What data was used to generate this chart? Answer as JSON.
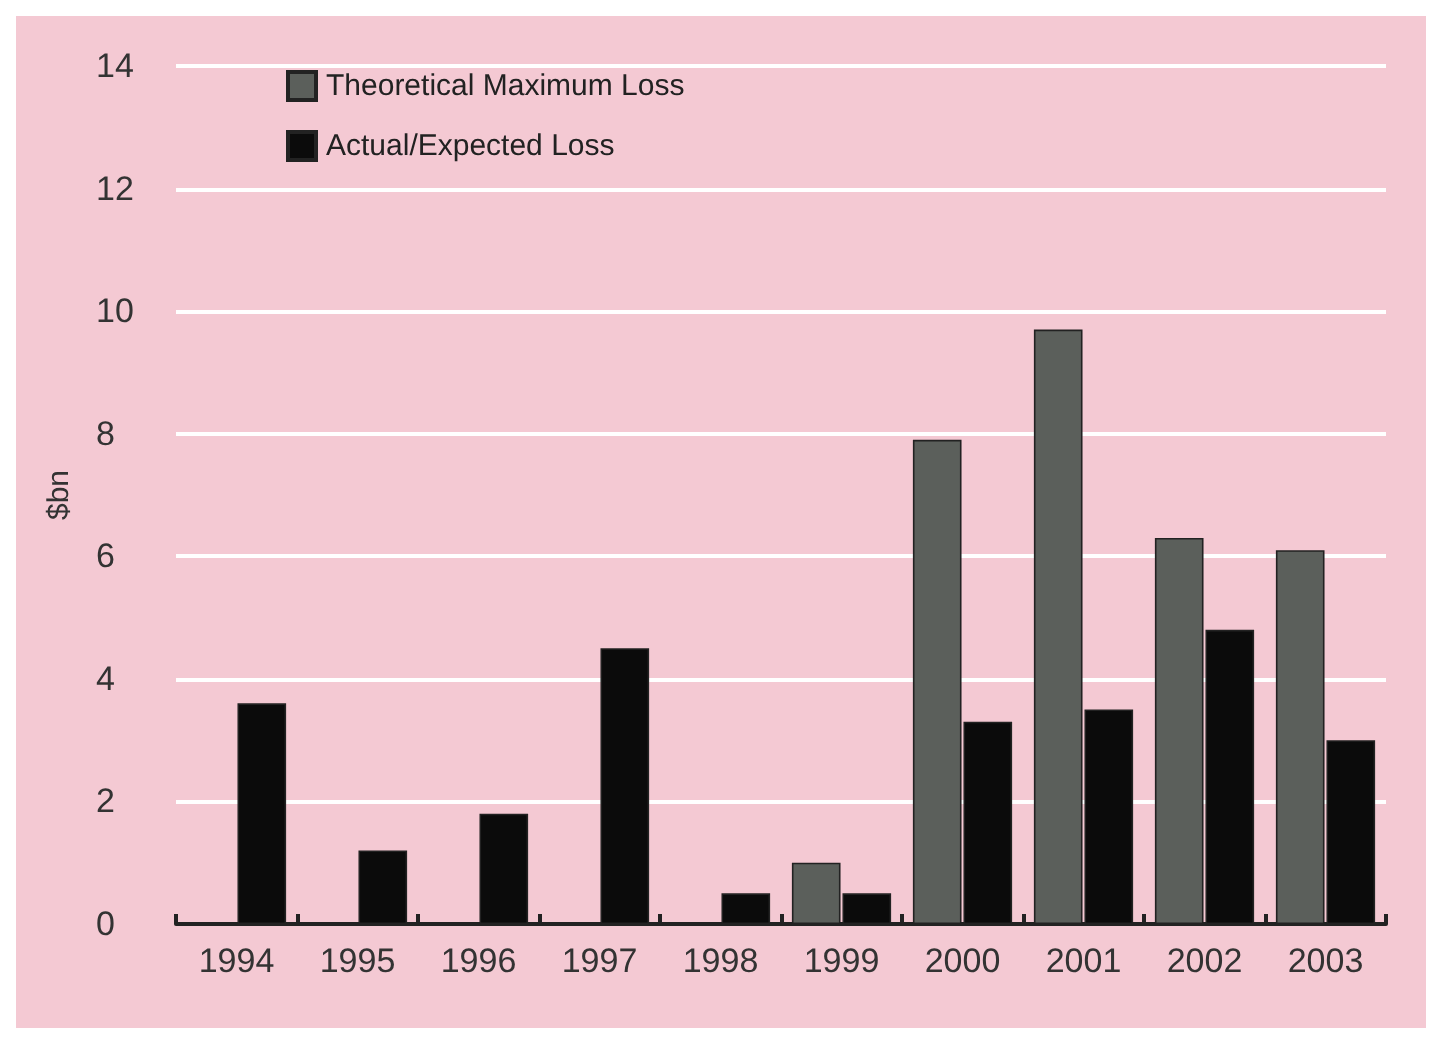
{
  "chart_data": {
    "type": "bar",
    "ylabel": "$bn",
    "categories": [
      "1994",
      "1995",
      "1996",
      "1997",
      "1998",
      "1999",
      "2000",
      "2001",
      "2002",
      "2003"
    ],
    "series": [
      {
        "name": "Theoretical Maximum Loss",
        "color": "#5b5f5b",
        "values": [
          null,
          null,
          null,
          null,
          null,
          1.0,
          7.9,
          9.7,
          6.3,
          6.1
        ]
      },
      {
        "name": "Actual/Expected Loss",
        "color": "#0b0b0b",
        "values": [
          3.6,
          1.2,
          1.8,
          4.5,
          0.5,
          0.5,
          3.3,
          3.5,
          4.8,
          3.0
        ]
      }
    ],
    "ylim": [
      0,
      14
    ],
    "yticks": [
      0,
      2,
      4,
      6,
      8,
      10,
      12,
      14
    ],
    "grid": "y",
    "legend": "top left"
  }
}
